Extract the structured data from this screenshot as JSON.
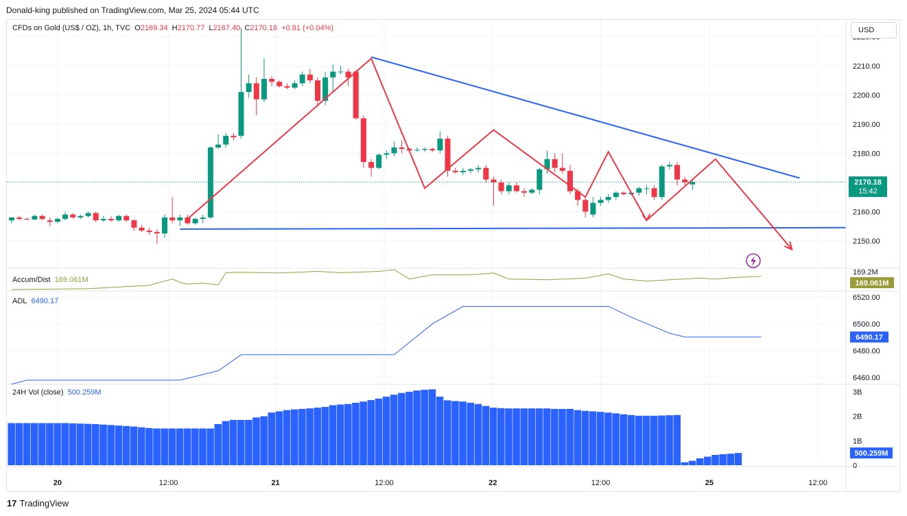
{
  "header": {
    "publisher": "Donald-king published on TradingView.com, Mar 25, 2024 05:44 UTC"
  },
  "footer": {
    "logo": "17",
    "brand": "TradingView"
  },
  "currency_button": "USD",
  "legend": {
    "symbol": "CFDs on Gold (US$ / OZ), 1h, TVC",
    "o_label": "O",
    "o_value": "2169.34",
    "h_label": "H",
    "h_value": "2170.77",
    "l_label": "L",
    "l_value": "2167.40",
    "c_label": "C",
    "c_value": "2170.18",
    "change": "+0.81 (+0.04%)"
  },
  "colors": {
    "up": "#089981",
    "down": "#f23645",
    "blue": "#2962ff",
    "draw": "#f23645",
    "olive": "#9b9b3a",
    "axis": "#131722",
    "grid": "#f0f3fa"
  },
  "chart_data": [
    {
      "type": "candlestick",
      "title": "CFDs on Gold (US$ / OZ), 1h, TVC",
      "ylim": [
        2140.8,
        2225.5
      ],
      "y_ticks": [
        "2150.00",
        "2160.00",
        "2170.00",
        "2180.00",
        "2190.00",
        "2200.00",
        "2210.00",
        "2220.00"
      ],
      "x_ticks": [
        "20",
        "12:00",
        "21",
        "12:00",
        "22",
        "12:00",
        "25",
        "12:00"
      ],
      "last_price_label": "2170.18",
      "countdown_label": "15:42",
      "ohlc": [
        [
          2157,
          2158,
          2156,
          2158
        ],
        [
          2158,
          2158.5,
          2157,
          2157.5
        ],
        [
          2157.5,
          2158,
          2157,
          2157.3
        ],
        [
          2157.3,
          2159,
          2157,
          2158.5
        ],
        [
          2158.5,
          2159,
          2157,
          2157.5
        ],
        [
          2157,
          2158,
          2155,
          2156.5
        ],
        [
          2156.5,
          2158,
          2156,
          2157.5
        ],
        [
          2157.5,
          2160,
          2157,
          2159
        ],
        [
          2159,
          2159.5,
          2157.5,
          2158
        ],
        [
          2158,
          2159,
          2157.5,
          2158.5
        ],
        [
          2158.5,
          2160,
          2158,
          2159.5
        ],
        [
          2159.5,
          2160,
          2156.5,
          2157
        ],
        [
          2157,
          2158.5,
          2156.5,
          2157.5
        ],
        [
          2157.5,
          2158.5,
          2156.5,
          2157
        ],
        [
          2157,
          2159,
          2156.5,
          2158.5
        ],
        [
          2158.5,
          2159,
          2156.5,
          2157
        ],
        [
          2157,
          2157.5,
          2153.5,
          2154.5
        ],
        [
          2154.5,
          2155.5,
          2153,
          2153.5
        ],
        [
          2153.5,
          2154.5,
          2152,
          2153
        ],
        [
          2153,
          2154,
          2149,
          2152.5
        ],
        [
          2152.5,
          2159,
          2151,
          2158
        ],
        [
          2158,
          2165,
          2156,
          2157
        ],
        [
          2157,
          2159,
          2155,
          2158
        ],
        [
          2158,
          2159,
          2155.5,
          2156
        ],
        [
          2156,
          2158,
          2155.5,
          2157.5
        ],
        [
          2157.5,
          2159,
          2156,
          2158
        ],
        [
          2158,
          2182.5,
          2157.5,
          2182
        ],
        [
          2182,
          2186.5,
          2181.5,
          2183
        ],
        [
          2183,
          2187,
          2182,
          2186
        ],
        [
          2186,
          2187,
          2184.5,
          2185.5
        ],
        [
          2186,
          2223,
          2185,
          2201
        ],
        [
          2201,
          2207,
          2199,
          2204
        ],
        [
          2204,
          2206,
          2193,
          2198.5
        ],
        [
          2198.5,
          2212.5,
          2197.5,
          2205.5
        ],
        [
          2205.5,
          2206.5,
          2203,
          2204.5
        ],
        [
          2204.5,
          2205,
          2202.5,
          2203
        ],
        [
          2203,
          2204,
          2202,
          2202.5
        ],
        [
          2202.5,
          2205,
          2202,
          2204
        ],
        [
          2204,
          2208,
          2203,
          2207
        ],
        [
          2207,
          2209,
          2204,
          2205
        ],
        [
          2205,
          2206,
          2196,
          2198
        ],
        [
          2198,
          2208,
          2196.5,
          2206
        ],
        [
          2206,
          2210.5,
          2201,
          2208
        ],
        [
          2208,
          2210,
          2207,
          2208
        ],
        [
          2208,
          2209,
          2203,
          2206
        ],
        [
          2208,
          2208.5,
          2191.5,
          2192
        ],
        [
          2192,
          2193,
          2175,
          2177
        ],
        [
          2177,
          2178,
          2172,
          2175
        ],
        [
          2175,
          2180,
          2174.5,
          2179.5
        ],
        [
          2179.5,
          2181,
          2178,
          2180
        ],
        [
          2180,
          2184,
          2179,
          2182
        ],
        [
          2182,
          2184.5,
          2180,
          2181.5
        ],
        [
          2181.5,
          2182,
          2180.5,
          2181
        ],
        [
          2181,
          2182,
          2180.5,
          2181.2
        ],
        [
          2181.2,
          2182,
          2180.5,
          2181.5
        ],
        [
          2181.5,
          2182,
          2180.5,
          2181
        ],
        [
          2181,
          2187.5,
          2180,
          2185
        ],
        [
          2185,
          2186,
          2172,
          2174
        ],
        [
          2174,
          2175,
          2173,
          2173.5
        ],
        [
          2173.5,
          2175,
          2172.5,
          2174
        ],
        [
          2174,
          2175,
          2173,
          2174.5
        ],
        [
          2174.5,
          2176,
          2173.5,
          2175
        ],
        [
          2175,
          2176,
          2170,
          2171
        ],
        [
          2171,
          2172,
          2162,
          2170
        ],
        [
          2170,
          2171,
          2166,
          2167
        ],
        [
          2167,
          2170,
          2166,
          2169
        ],
        [
          2169,
          2170,
          2166.5,
          2167
        ],
        [
          2167,
          2168,
          2165,
          2166.5
        ],
        [
          2166.5,
          2168,
          2166,
          2167.5
        ],
        [
          2167.5,
          2175,
          2166,
          2174.5
        ],
        [
          2174.5,
          2181,
          2173,
          2178
        ],
        [
          2178,
          2180,
          2173.5,
          2175
        ],
        [
          2175,
          2180,
          2173,
          2174
        ],
        [
          2174,
          2176,
          2166,
          2167
        ],
        [
          2167,
          2168,
          2162,
          2164
        ],
        [
          2164,
          2165,
          2158,
          2160
        ],
        [
          2159,
          2165,
          2158,
          2163
        ],
        [
          2163,
          2165,
          2162,
          2164
        ],
        [
          2164,
          2166,
          2163,
          2165
        ],
        [
          2165,
          2167,
          2164,
          2166.5
        ],
        [
          2166.5,
          2167,
          2165.5,
          2166
        ],
        [
          2166,
          2167,
          2165.5,
          2166.5
        ],
        [
          2166.5,
          2168.5,
          2165.5,
          2168
        ],
        [
          2168,
          2169,
          2166,
          2168
        ],
        [
          2168,
          2169,
          2164,
          2165
        ],
        [
          2165,
          2176,
          2164,
          2175.5
        ],
        [
          2175.5,
          2177,
          2174.5,
          2176
        ],
        [
          2176,
          2177,
          2169,
          2171
        ],
        [
          2171,
          2172,
          2169,
          2170
        ],
        [
          2169.34,
          2170.77,
          2167.4,
          2170.18
        ]
      ],
      "trendlines": [
        {
          "name": "descending-resistance",
          "from": [
            47,
            2213
          ],
          "to": [
            103,
            2171.5
          ]
        },
        {
          "name": "horizontal-support",
          "from": [
            22,
            2154
          ],
          "to": [
            109,
            2154.5
          ]
        }
      ],
      "zigzag": [
        [
          23,
          2157.5
        ],
        [
          47,
          2212.5
        ],
        [
          54,
          2168
        ],
        [
          63,
          2188
        ],
        [
          75,
          2165
        ],
        [
          78,
          2180.5
        ],
        [
          83,
          2157
        ],
        [
          92,
          2178
        ],
        [
          102,
          2147
        ]
      ]
    },
    {
      "type": "line",
      "name": "Accum/Dist",
      "label": "Accum/Dist",
      "value_label": "169.061M",
      "axis_label": "169.2M",
      "ylim": [
        168.75,
        169.22
      ],
      "x": [
        0,
        5,
        10,
        18,
        21,
        22,
        23,
        25,
        27,
        28,
        30,
        35,
        40,
        43,
        45,
        48,
        50,
        52,
        55,
        60,
        63,
        65,
        70,
        75,
        78,
        80,
        83,
        86,
        90,
        92,
        95,
        98
      ],
      "values": [
        168.75,
        168.76,
        168.77,
        168.85,
        169.0,
        168.92,
        168.88,
        168.9,
        168.86,
        169.15,
        169.16,
        169.14,
        169.18,
        169.15,
        169.16,
        169.18,
        169.22,
        169.0,
        169.1,
        169.1,
        169.14,
        169.0,
        168.98,
        169.02,
        169.12,
        169.0,
        168.95,
        168.98,
        169.02,
        169.0,
        169.04,
        169.061
      ]
    },
    {
      "type": "line",
      "name": "ADL",
      "label": "ADL",
      "value_label": "6490.17",
      "y_ticks": [
        "6460.00",
        "6480.00",
        "6500.00",
        "6520.00"
      ],
      "ylim": [
        6457,
        6523
      ],
      "x": [
        0,
        2,
        22,
        27,
        30,
        50,
        55,
        59,
        78,
        81,
        86,
        88,
        98
      ],
      "values": [
        6455,
        6458,
        6458,
        6465,
        6477,
        6477,
        6500,
        6513,
        6513,
        6505,
        6493,
        6490.17,
        6490.17
      ]
    },
    {
      "type": "bar",
      "name": "24H Vol (close)",
      "label": "24H Vol (close)",
      "value_label": "500.259M",
      "y_ticks": [
        "0",
        "1B",
        "2B",
        "3B"
      ],
      "ylim": [
        0,
        3.25
      ],
      "values": [
        1.72,
        1.72,
        1.72,
        1.72,
        1.72,
        1.72,
        1.72,
        1.72,
        1.71,
        1.7,
        1.69,
        1.68,
        1.66,
        1.64,
        1.62,
        1.6,
        1.58,
        1.55,
        1.52,
        1.5,
        1.5,
        1.5,
        1.5,
        1.5,
        1.5,
        1.5,
        1.5,
        1.68,
        1.8,
        1.85,
        1.85,
        1.85,
        1.95,
        2.0,
        2.15,
        2.2,
        2.25,
        2.28,
        2.3,
        2.32,
        2.35,
        2.38,
        2.45,
        2.48,
        2.5,
        2.55,
        2.6,
        2.66,
        2.72,
        2.8,
        2.88,
        2.95,
        3.0,
        3.05,
        3.08,
        3.1,
        2.8,
        2.65,
        2.62,
        2.6,
        2.55,
        2.5,
        2.42,
        2.35,
        2.33,
        2.32,
        2.32,
        2.32,
        2.32,
        2.32,
        2.32,
        2.3,
        2.3,
        2.3,
        2.25,
        2.22,
        2.2,
        2.18,
        2.15,
        2.12,
        2.08,
        2.05,
        2.02,
        2.02,
        2.02,
        2.03,
        2.04,
        2.05,
        0.12,
        0.18,
        0.28,
        0.35,
        0.42,
        0.45,
        0.47,
        0.5
      ]
    }
  ]
}
